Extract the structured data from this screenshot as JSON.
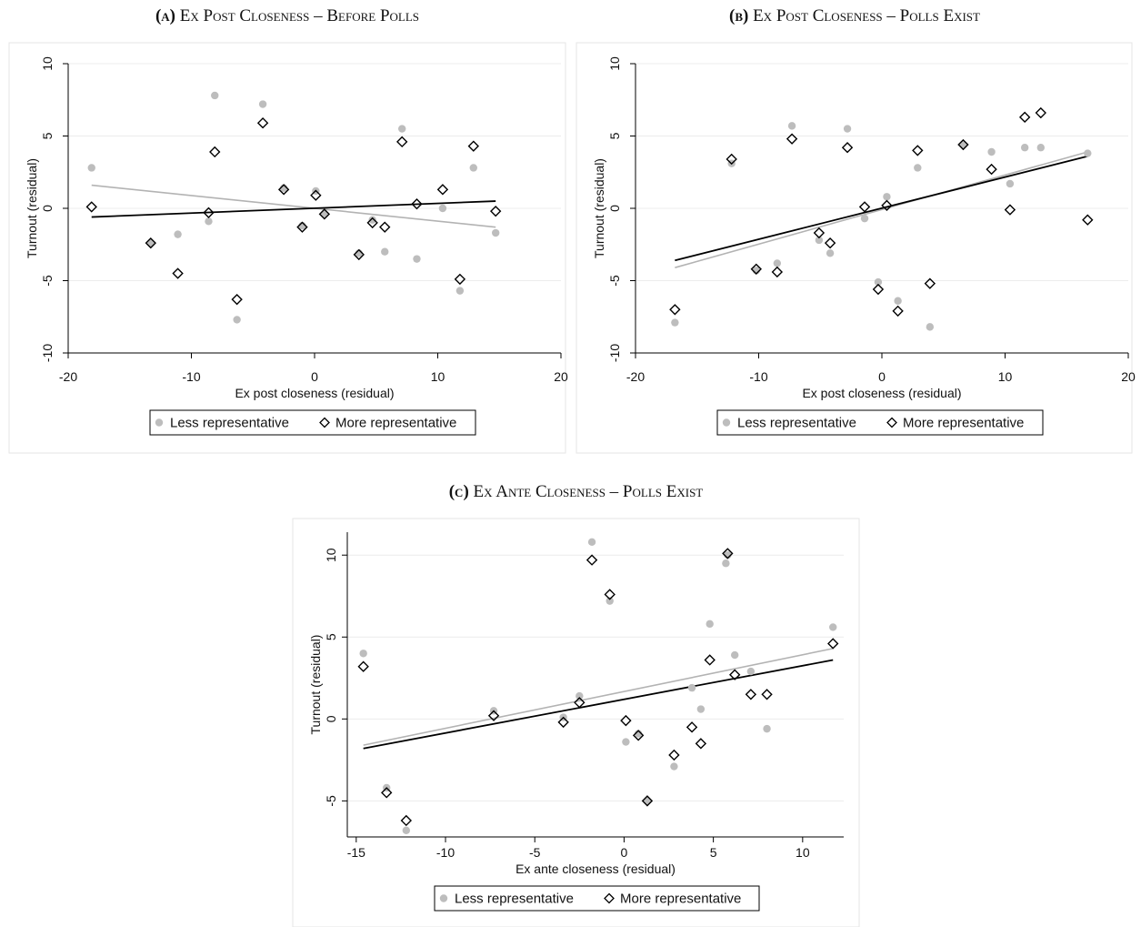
{
  "chart_data": [
    {
      "type": "scatter",
      "panel_letter": "(a)",
      "title": "Ex Post Closeness – Before Polls",
      "xlabel": "Ex post closeness (residual)",
      "ylabel": "Turnout (residual)",
      "xlim": [
        -20,
        20
      ],
      "ylim": [
        -10,
        10
      ],
      "xticks": [
        "-20",
        "-10",
        "0",
        "10",
        "20"
      ],
      "yticks": [
        "-10",
        "-5",
        "0",
        "5",
        "10"
      ],
      "xtick_values": [
        -20,
        -10,
        0,
        10,
        20
      ],
      "ytick_values": [
        -10,
        -5,
        0,
        5,
        10
      ],
      "grid": true,
      "legend": [
        "Less representative",
        "More representative"
      ],
      "series": [
        {
          "name": "Less representative",
          "marker": "circle",
          "color": "#bdbdbd",
          "x": [
            -18.1,
            -13.3,
            -11.1,
            -8.6,
            -8.1,
            -6.3,
            -4.2,
            -2.5,
            -1.0,
            0.1,
            0.8,
            3.6,
            4.7,
            5.7,
            7.1,
            8.3,
            10.4,
            11.8,
            12.9,
            14.7
          ],
          "y": [
            2.8,
            -2.4,
            -1.8,
            -0.9,
            7.8,
            -7.7,
            7.2,
            1.4,
            -1.2,
            1.2,
            -0.4,
            -3.1,
            -0.8,
            -3.0,
            5.5,
            -3.5,
            0.0,
            -5.7,
            2.8,
            -1.7
          ],
          "fit": [
            [
              -18.1,
              1.6
            ],
            [
              14.7,
              -1.3
            ]
          ]
        },
        {
          "name": "More representative",
          "marker": "diamond",
          "color": "#000000",
          "x": [
            -18.1,
            -13.3,
            -11.1,
            -8.6,
            -8.1,
            -6.3,
            -4.2,
            -2.5,
            -1.0,
            0.1,
            0.8,
            3.6,
            4.7,
            5.7,
            7.1,
            8.3,
            10.4,
            11.8,
            12.9,
            14.7
          ],
          "y": [
            0.1,
            -2.4,
            -4.5,
            -0.3,
            3.9,
            -6.3,
            5.9,
            1.3,
            -1.3,
            0.9,
            -0.4,
            -3.2,
            -1.0,
            -1.3,
            4.6,
            0.3,
            1.3,
            -4.9,
            4.3,
            -0.2
          ],
          "fit": [
            [
              -18.1,
              -0.6
            ],
            [
              14.7,
              0.5
            ]
          ]
        }
      ]
    },
    {
      "type": "scatter",
      "panel_letter": "(b)",
      "title": "Ex Post Closeness – Polls Exist",
      "xlabel": "Ex post closeness (residual)",
      "ylabel": "Turnout (residual)",
      "xlim": [
        -20,
        20
      ],
      "ylim": [
        -10,
        10
      ],
      "xticks": [
        "-20",
        "-10",
        "0",
        "10",
        "20"
      ],
      "yticks": [
        "-10",
        "-5",
        "0",
        "5",
        "10"
      ],
      "xtick_values": [
        -20,
        -10,
        0,
        10,
        20
      ],
      "ytick_values": [
        -10,
        -5,
        0,
        5,
        10
      ],
      "grid": true,
      "legend": [
        "Less representative",
        "More representative"
      ],
      "series": [
        {
          "name": "Less representative",
          "marker": "circle",
          "color": "#bdbdbd",
          "x": [
            -16.8,
            -12.2,
            -10.2,
            -8.5,
            -7.3,
            -5.1,
            -4.2,
            -2.8,
            -1.4,
            -0.3,
            0.4,
            1.3,
            2.9,
            3.9,
            6.6,
            8.9,
            10.4,
            11.6,
            12.9,
            16.7
          ],
          "y": [
            -7.9,
            3.1,
            -4.3,
            -3.8,
            5.7,
            -2.2,
            -3.1,
            5.5,
            -0.7,
            -5.1,
            0.8,
            -6.4,
            2.8,
            -8.2,
            4.4,
            3.9,
            1.7,
            4.2,
            4.2,
            3.8
          ],
          "fit": [
            [
              -16.8,
              -4.1
            ],
            [
              16.7,
              3.9
            ]
          ]
        },
        {
          "name": "More representative",
          "marker": "diamond",
          "color": "#000000",
          "x": [
            -16.8,
            -12.2,
            -10.2,
            -8.5,
            -7.3,
            -5.1,
            -4.2,
            -2.8,
            -1.4,
            -0.3,
            0.4,
            1.3,
            2.9,
            3.9,
            6.6,
            8.9,
            10.4,
            11.6,
            12.9,
            16.7
          ],
          "y": [
            -7.0,
            3.4,
            -4.2,
            -4.4,
            4.8,
            -1.7,
            -2.4,
            4.2,
            0.1,
            -5.6,
            0.2,
            -7.1,
            4.0,
            -5.2,
            4.4,
            2.7,
            -0.1,
            6.3,
            6.6,
            -0.8
          ],
          "fit": [
            [
              -16.8,
              -3.6
            ],
            [
              16.7,
              3.6
            ]
          ]
        }
      ]
    },
    {
      "type": "scatter",
      "panel_letter": "(c)",
      "title": "Ex Ante Closeness – Polls Exist",
      "xlabel": "Ex ante closeness (residual)",
      "ylabel": "Turnout (residual)",
      "xlim": [
        -15.5,
        12.3
      ],
      "ylim": [
        -7.2,
        11.4
      ],
      "xticks": [
        "-15",
        "-10",
        "-5",
        "0",
        "5",
        "10"
      ],
      "yticks": [
        "-5",
        "0",
        "5",
        "10"
      ],
      "xtick_values": [
        -15,
        -10,
        -5,
        0,
        5,
        10
      ],
      "ytick_values": [
        -5,
        0,
        5,
        10
      ],
      "grid": true,
      "legend": [
        "Less representative",
        "More representative"
      ],
      "series": [
        {
          "name": "Less representative",
          "marker": "circle",
          "color": "#bdbdbd",
          "x": [
            -14.6,
            -13.3,
            -12.2,
            -7.3,
            -3.4,
            -2.5,
            -1.8,
            -0.8,
            0.1,
            0.8,
            1.3,
            2.8,
            3.8,
            4.3,
            4.8,
            5.7,
            5.8,
            6.2,
            7.1,
            8.0,
            11.7
          ],
          "y": [
            4.0,
            -4.2,
            -6.8,
            0.5,
            0.1,
            1.4,
            10.8,
            7.2,
            -1.4,
            -0.9,
            -5.0,
            -2.9,
            1.9,
            0.6,
            5.8,
            9.5,
            10.0,
            3.9,
            2.9,
            -0.6,
            5.6
          ],
          "fit": [
            [
              -14.6,
              -1.6
            ],
            [
              11.7,
              4.3
            ]
          ]
        },
        {
          "name": "More representative",
          "marker": "diamond",
          "color": "#000000",
          "x": [
            -14.6,
            -13.3,
            -12.2,
            -7.3,
            -3.4,
            -2.5,
            -1.8,
            -0.8,
            0.1,
            0.8,
            1.3,
            2.8,
            3.8,
            4.3,
            4.8,
            5.8,
            6.2,
            7.1,
            8.0,
            11.7
          ],
          "y": [
            3.2,
            -4.5,
            -6.2,
            0.2,
            -0.2,
            1.0,
            9.7,
            7.6,
            -0.1,
            -1.0,
            -5.0,
            -2.2,
            -0.5,
            -1.5,
            3.6,
            10.1,
            2.7,
            1.5,
            1.5,
            4.6
          ],
          "fit": [
            [
              -14.6,
              -1.8
            ],
            [
              11.7,
              3.6
            ]
          ]
        }
      ]
    }
  ]
}
